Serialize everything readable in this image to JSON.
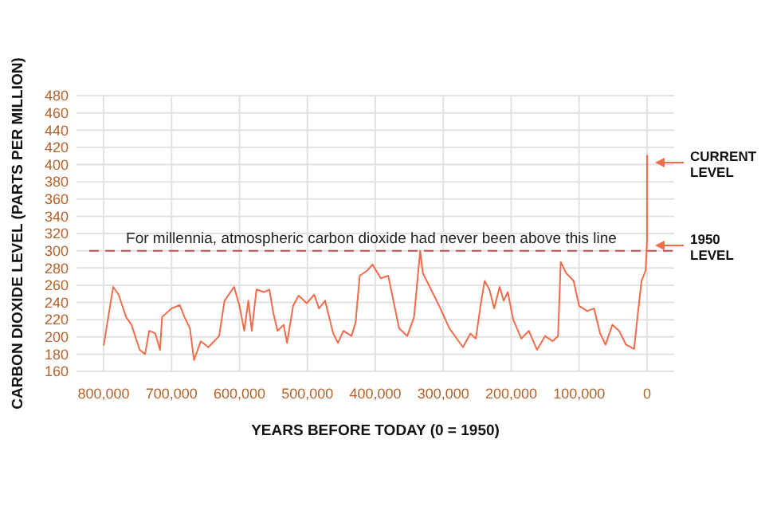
{
  "chart_data": {
    "type": "line",
    "xlabel": "YEARS BEFORE TODAY (0 = 1950)",
    "ylabel": "CARBON DIOXIDE LEVEL (PARTS PER MILLION)",
    "xlim": [
      840000,
      -40000
    ],
    "xticks": [
      {
        "value": 800000,
        "label": "800,000"
      },
      {
        "value": 700000,
        "label": "700,000"
      },
      {
        "value": 600000,
        "label": "600,000"
      },
      {
        "value": 500000,
        "label": "500,000"
      },
      {
        "value": 400000,
        "label": "400,000"
      },
      {
        "value": 300000,
        "label": "300,000"
      },
      {
        "value": 200000,
        "label": "200,000"
      },
      {
        "value": 100000,
        "label": "100,000"
      },
      0
    ],
    "ylim": [
      160,
      480
    ],
    "yticks": [
      160,
      180,
      200,
      220,
      240,
      260,
      280,
      300,
      320,
      340,
      360,
      380,
      400,
      420,
      440,
      460,
      480
    ],
    "grid": true,
    "line_style": "solid",
    "marker": "none",
    "series": [
      {
        "color": "#f26b4a",
        "x": [
          800000,
          786000,
          778000,
          767000,
          759000,
          747000,
          739000,
          733000,
          724000,
          717000,
          714000,
          700000,
          688000,
          681000,
          673000,
          667000,
          657000,
          646000,
          630000,
          622000,
          608000,
          600000,
          593000,
          587000,
          582000,
          575000,
          564000,
          556000,
          550000,
          544000,
          535000,
          530000,
          521000,
          513000,
          501000,
          490000,
          483000,
          474000,
          462000,
          455000,
          447000,
          435000,
          429000,
          423000,
          412000,
          404000,
          392000,
          381000,
          365000,
          353000,
          343000,
          334000,
          330000,
          318000,
          306000,
          291000,
          271000,
          260000,
          252000,
          244000,
          239000,
          232000,
          225000,
          217000,
          211000,
          205000,
          197000,
          185000,
          174000,
          162000,
          150000,
          139000,
          131000,
          127000,
          119000,
          108000,
          100000,
          88000,
          78000,
          69000,
          61000,
          51000,
          41000,
          31000,
          19000,
          14000,
          8000,
          2000,
          0,
          -70
        ],
        "values": [
          190,
          258,
          249,
          223,
          214,
          185,
          180,
          207,
          204,
          185,
          223,
          233,
          237,
          223,
          210,
          173,
          195,
          188,
          201,
          242,
          258,
          236,
          207,
          242,
          207,
          255,
          252,
          255,
          227,
          207,
          214,
          193,
          236,
          248,
          239,
          249,
          233,
          242,
          204,
          193,
          207,
          201,
          217,
          271,
          277,
          284,
          268,
          271,
          210,
          201,
          223,
          300,
          274,
          255,
          236,
          210,
          188,
          204,
          198,
          242,
          265,
          255,
          233,
          258,
          242,
          252,
          220,
          198,
          207,
          185,
          201,
          195,
          201,
          287,
          274,
          265,
          236,
          230,
          233,
          204,
          191,
          214,
          207,
          191,
          186,
          223,
          265,
          277,
          310,
          411
        ]
      }
    ],
    "ref_lines": [
      {
        "axis": "y",
        "value": 300,
        "label": "For millennia, atmospheric carbon dioxide had never been above this line",
        "color": "#c0504d",
        "line_style": "dashed"
      }
    ],
    "annotations": [
      "CURRENT LEVEL",
      "1950 LEVEL"
    ]
  }
}
